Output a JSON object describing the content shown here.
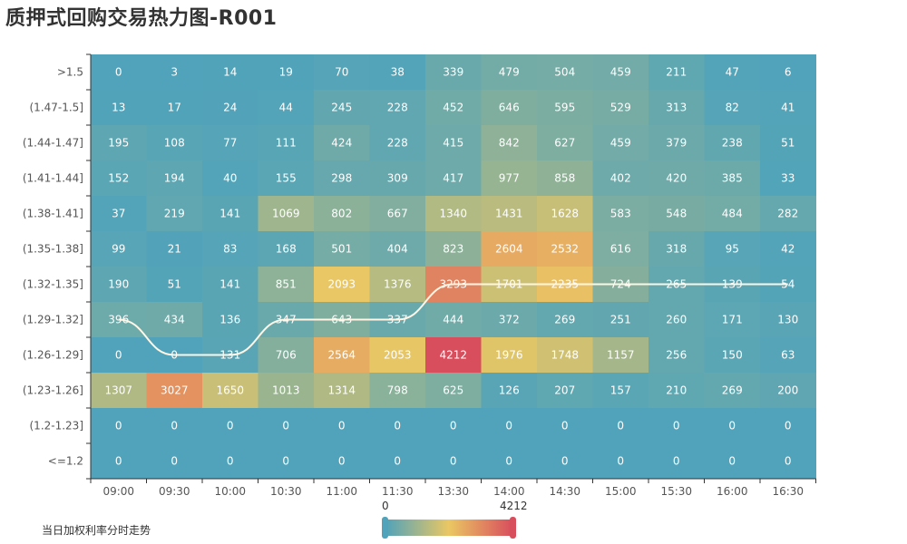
{
  "title": "质押式回购交易热力图-R001",
  "chart_data": {
    "type": "heatmap",
    "x_categories": [
      "09:00",
      "09:30",
      "10:00",
      "10:30",
      "11:00",
      "11:30",
      "13:30",
      "14:00",
      "14:30",
      "15:00",
      "15:30",
      "16:00",
      "16:30"
    ],
    "y_categories": [
      "<=1.2",
      "(1.2-1.23]",
      "(1.23-1.26]",
      "(1.26-1.29]",
      "(1.29-1.32]",
      "(1.32-1.35]",
      "(1.35-1.38]",
      "(1.38-1.41]",
      "(1.41-1.44]",
      "(1.44-1.47]",
      "(1.47-1.5]",
      ">1.5"
    ],
    "rows_top_to_bottom": [
      {
        "label": ">1.5",
        "values": [
          0,
          3,
          14,
          19,
          70,
          38,
          339,
          479,
          504,
          459,
          211,
          47,
          6
        ]
      },
      {
        "label": "(1.47-1.5]",
        "values": [
          13,
          17,
          24,
          44,
          245,
          228,
          452,
          646,
          595,
          529,
          313,
          82,
          41
        ]
      },
      {
        "label": "(1.44-1.47]",
        "values": [
          195,
          108,
          77,
          111,
          424,
          228,
          415,
          842,
          627,
          459,
          379,
          238,
          51
        ]
      },
      {
        "label": "(1.41-1.44]",
        "values": [
          152,
          194,
          40,
          155,
          298,
          309,
          417,
          977,
          858,
          402,
          420,
          385,
          33
        ]
      },
      {
        "label": "(1.38-1.41]",
        "values": [
          37,
          219,
          141,
          1069,
          802,
          667,
          1340,
          1431,
          1628,
          583,
          548,
          484,
          282
        ]
      },
      {
        "label": "(1.35-1.38]",
        "values": [
          99,
          21,
          83,
          168,
          501,
          404,
          823,
          2604,
          2532,
          616,
          318,
          95,
          42
        ]
      },
      {
        "label": "(1.32-1.35]",
        "values": [
          190,
          51,
          141,
          851,
          2093,
          1376,
          3293,
          1701,
          2235,
          724,
          265,
          139,
          54
        ]
      },
      {
        "label": "(1.29-1.32]",
        "values": [
          396,
          434,
          136,
          347,
          643,
          337,
          444,
          372,
          269,
          251,
          260,
          171,
          130
        ]
      },
      {
        "label": "(1.26-1.29]",
        "values": [
          0,
          0,
          131,
          706,
          2564,
          2053,
          4212,
          1976,
          1748,
          1157,
          256,
          150,
          63
        ]
      },
      {
        "label": "(1.23-1.26]",
        "values": [
          1307,
          3027,
          1650,
          1013,
          1314,
          798,
          625,
          126,
          207,
          157,
          210,
          269,
          200
        ]
      },
      {
        "label": "(1.2-1.23]",
        "values": [
          0,
          0,
          0,
          0,
          0,
          0,
          0,
          0,
          0,
          0,
          0,
          0,
          0
        ]
      },
      {
        "label": "<=1.2",
        "values": [
          0,
          0,
          0,
          0,
          0,
          0,
          0,
          0,
          0,
          0,
          0,
          0,
          0
        ]
      }
    ],
    "line_series": {
      "name": "当日加权利率分时走势",
      "color": "#fff6e6",
      "y_category_index": [
        4,
        3,
        3,
        4,
        4,
        4,
        5,
        5,
        5,
        5,
        5,
        5,
        5
      ]
    },
    "visual_map": {
      "min": 0,
      "max": 4212,
      "min_label": "0",
      "max_label": "4212",
      "colors": [
        "#50a3ba",
        "#eac763",
        "#d94e5d"
      ]
    }
  }
}
